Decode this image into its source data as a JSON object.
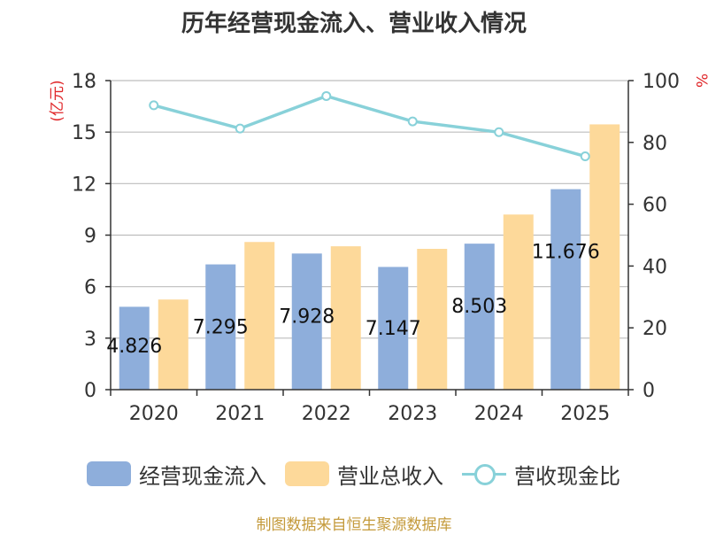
{
  "title": "历年经营现金流入、营业收入情况",
  "left_unit": "(亿元)",
  "right_unit": "%",
  "footer": "制图数据来自恒生聚源数据库",
  "colors": {
    "cash": "#8eaedb",
    "revenue": "#fdd99a",
    "ratio": "#88d1d9",
    "axis": "#333333",
    "grid": "#bdbdbd",
    "unit": "#e0272a"
  },
  "legend": [
    {
      "label": "经营现金流入",
      "type": "bar",
      "color": "#8eaedb"
    },
    {
      "label": "营业总收入",
      "type": "bar",
      "color": "#fdd99a"
    },
    {
      "label": "营收现金比",
      "type": "line",
      "color": "#88d1d9"
    }
  ],
  "chart_data": {
    "type": "bar",
    "title": "历年经营现金流入、营业收入情况",
    "categories": [
      "2020",
      "2021",
      "2022",
      "2023",
      "2024",
      "2025"
    ],
    "series": [
      {
        "name": "经营现金流入",
        "type": "bar",
        "axis": "left",
        "values": [
          4.826,
          7.295,
          7.928,
          7.147,
          8.503,
          11.676
        ],
        "data_labels": [
          "4.826",
          "7.295",
          "7.928",
          "7.147",
          "8.503",
          "11.676"
        ]
      },
      {
        "name": "营业总收入",
        "type": "bar",
        "axis": "left",
        "values": [
          5.25,
          8.6,
          8.35,
          8.2,
          10.2,
          15.45
        ]
      },
      {
        "name": "营收现金比",
        "type": "line",
        "axis": "right",
        "values": [
          92,
          84.5,
          95,
          86.8,
          83.3,
          75.5
        ]
      }
    ],
    "y_left": {
      "label": "(亿元)",
      "ylim": [
        0,
        18
      ],
      "ticks": [
        0,
        3,
        6,
        9,
        12,
        15,
        18
      ]
    },
    "y_right": {
      "label": "%",
      "ylim": [
        0,
        100
      ],
      "ticks": [
        0,
        20,
        40,
        60,
        80,
        100
      ]
    },
    "grid": true,
    "legend_position": "bottom"
  }
}
